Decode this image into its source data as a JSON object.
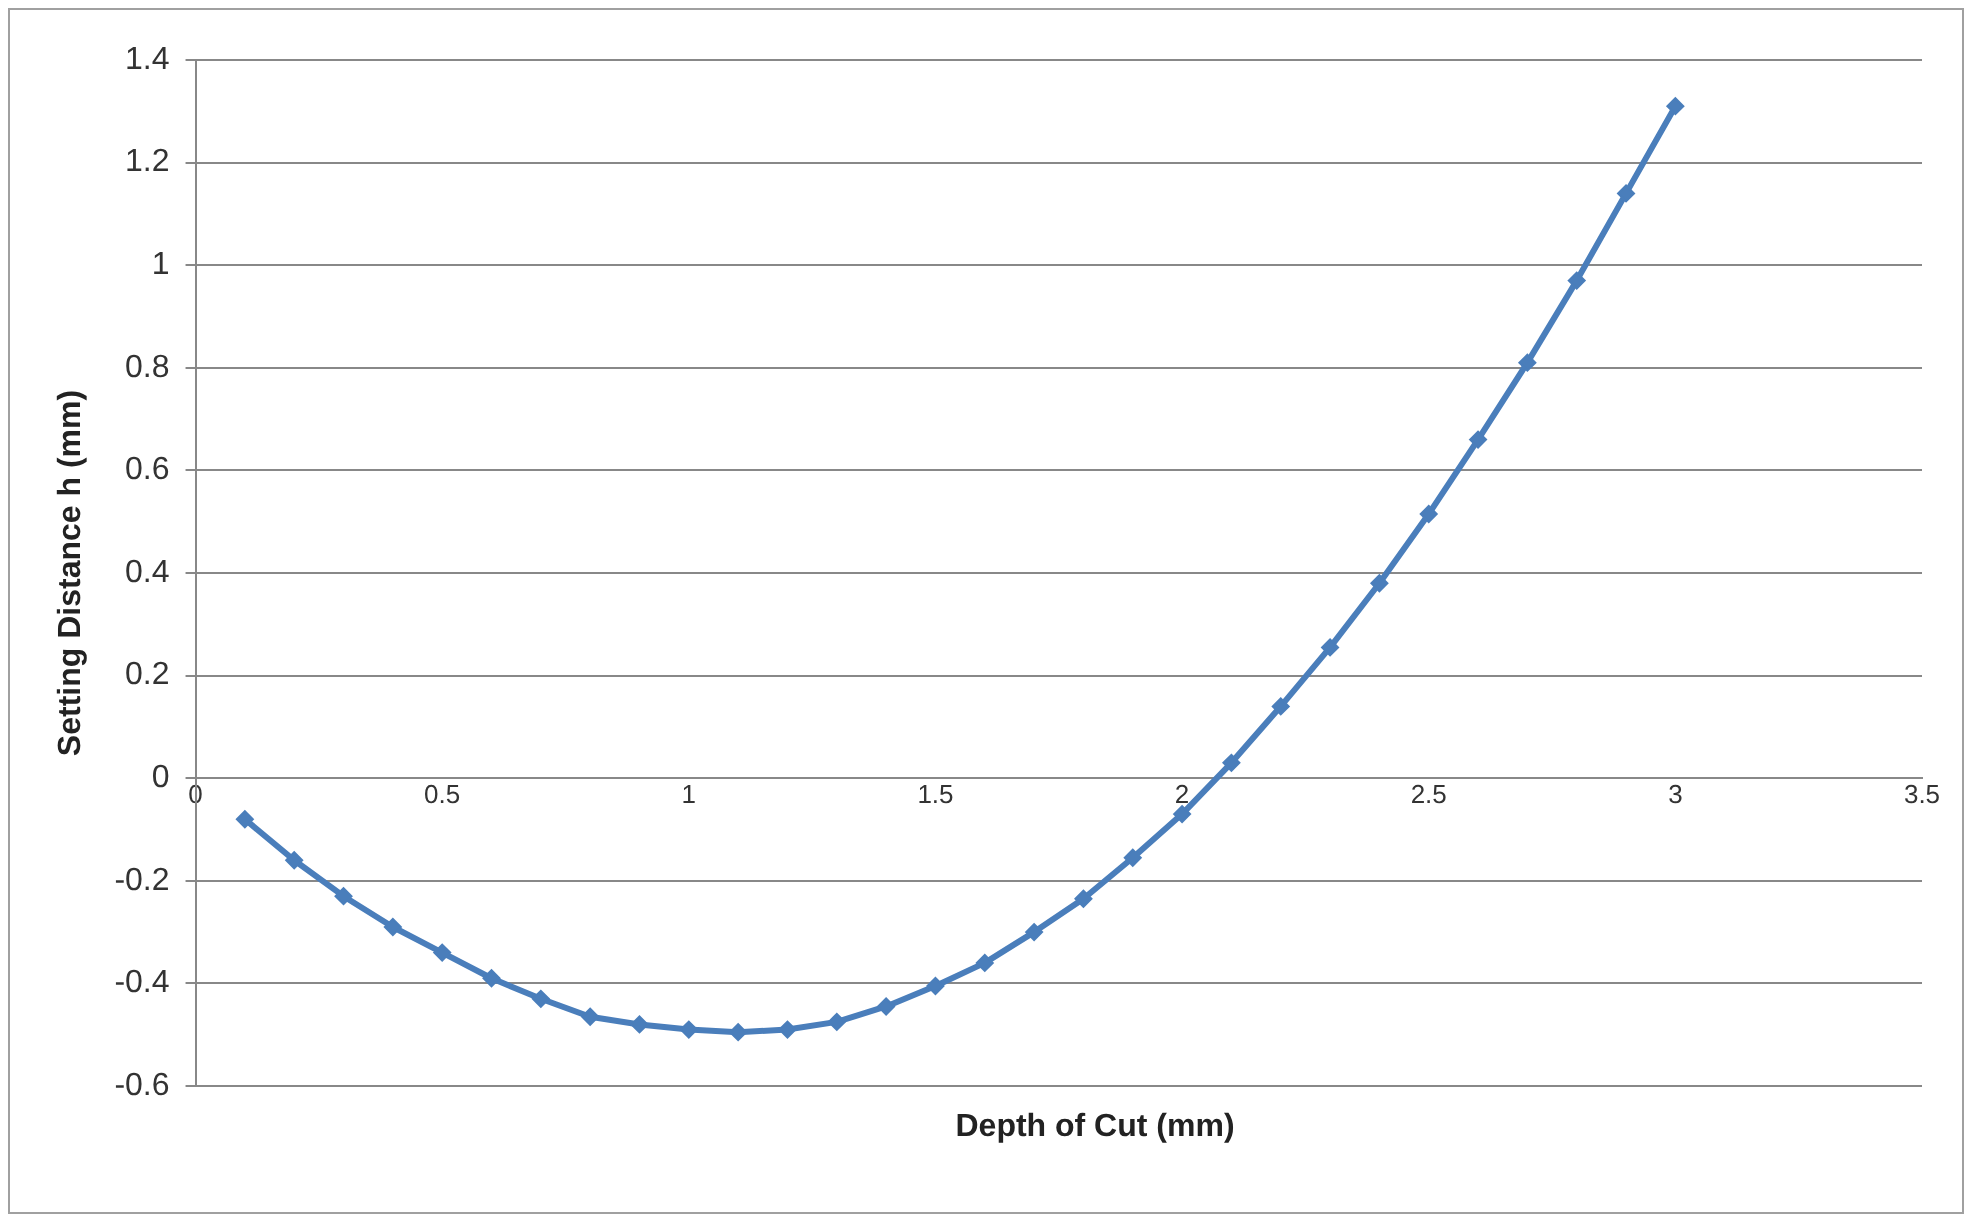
{
  "chart_data": {
    "type": "line",
    "xlabel": "Depth of Cut (mm)",
    "ylabel": "Setting Distance h (mm)",
    "x": [
      0.1,
      0.2,
      0.3,
      0.4,
      0.5,
      0.6,
      0.7,
      0.8,
      0.9,
      1.0,
      1.1,
      1.2,
      1.3,
      1.4,
      1.5,
      1.6,
      1.7,
      1.8,
      1.9,
      2.0,
      2.1,
      2.2,
      2.3,
      2.4,
      2.5,
      2.6,
      2.7,
      2.8,
      2.9,
      3.0
    ],
    "series": [
      {
        "color": "#4a7ebb",
        "values": [
          -0.08,
          -0.16,
          -0.23,
          -0.29,
          -0.34,
          -0.39,
          -0.43,
          -0.465,
          -0.48,
          -0.49,
          -0.495,
          -0.49,
          -0.475,
          -0.445,
          -0.405,
          -0.36,
          -0.3,
          -0.235,
          -0.155,
          -0.07,
          0.03,
          0.14,
          0.255,
          0.38,
          0.515,
          0.66,
          0.81,
          0.97,
          1.14,
          1.31
        ]
      }
    ],
    "xlim": [
      0,
      3.5
    ],
    "xticks": [
      0,
      0.5,
      1,
      1.5,
      2,
      2.5,
      3,
      3.5
    ],
    "ylim": [
      -0.6,
      1.4
    ],
    "yticks": [
      -0.6,
      -0.4,
      -0.2,
      0,
      0.2,
      0.4,
      0.6,
      0.8,
      1,
      1.2,
      1.4
    ],
    "grid": "y",
    "legend": false,
    "marker": "diamond",
    "line_style": "solid"
  }
}
